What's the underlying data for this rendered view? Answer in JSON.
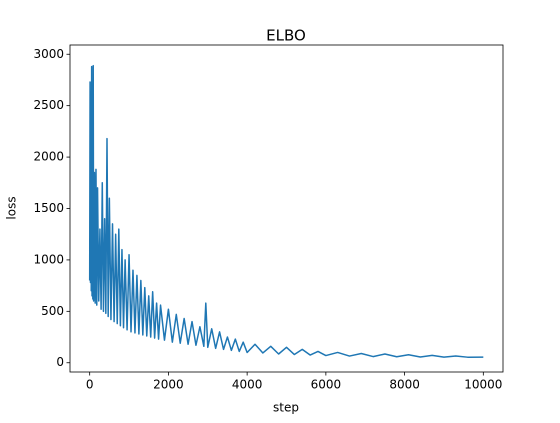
{
  "chart_data": {
    "type": "line",
    "title": "ELBO",
    "x_label": "step",
    "y_label": "loss",
    "color": "#1f77b4",
    "grid": false,
    "x": [
      0,
      10,
      20,
      30,
      40,
      50,
      60,
      70,
      80,
      90,
      100,
      120,
      140,
      160,
      180,
      200,
      230,
      260,
      290,
      320,
      350,
      380,
      410,
      440,
      470,
      500,
      540,
      580,
      620,
      660,
      700,
      740,
      780,
      820,
      860,
      900,
      950,
      1000,
      1050,
      1100,
      1150,
      1200,
      1250,
      1300,
      1350,
      1400,
      1450,
      1500,
      1550,
      1600,
      1650,
      1700,
      1750,
      1800,
      1900,
      2000,
      2100,
      2200,
      2300,
      2400,
      2500,
      2600,
      2700,
      2800,
      2900,
      2950,
      3000,
      3100,
      3200,
      3300,
      3400,
      3500,
      3600,
      3700,
      3800,
      3900,
      4000,
      4200,
      4400,
      4600,
      4800,
      5000,
      5200,
      5400,
      5600,
      5800,
      6000,
      6300,
      6600,
      6900,
      7200,
      7500,
      7800,
      8100,
      8400,
      8700,
      9000,
      9300,
      9600,
      10000
    ],
    "values": [
      800,
      2730,
      780,
      2350,
      700,
      2880,
      650,
      2250,
      620,
      2890,
      600,
      1850,
      580,
      1880,
      560,
      1700,
      600,
      1300,
      520,
      1750,
      500,
      1400,
      480,
      2180,
      450,
      1600,
      420,
      1350,
      400,
      1250,
      380,
      1300,
      360,
      1100,
      340,
      1000,
      320,
      1050,
      300,
      900,
      290,
      850,
      280,
      800,
      270,
      730,
      260,
      650,
      250,
      690,
      240,
      580,
      230,
      560,
      220,
      520,
      200,
      470,
      190,
      430,
      180,
      400,
      170,
      350,
      160,
      580,
      150,
      330,
      140,
      300,
      130,
      250,
      120,
      230,
      110,
      200,
      100,
      180,
      95,
      160,
      85,
      150,
      80,
      130,
      75,
      110,
      70,
      100,
      65,
      90,
      60,
      85,
      58,
      78,
      56,
      72,
      55,
      66,
      54,
      55
    ],
    "xlim": [
      -500,
      10500
    ],
    "ylim": [
      -90,
      3090
    ],
    "xticks": [
      0,
      2000,
      4000,
      6000,
      8000,
      10000
    ],
    "yticks": [
      0,
      500,
      1000,
      1500,
      2000,
      2500,
      3000
    ]
  }
}
